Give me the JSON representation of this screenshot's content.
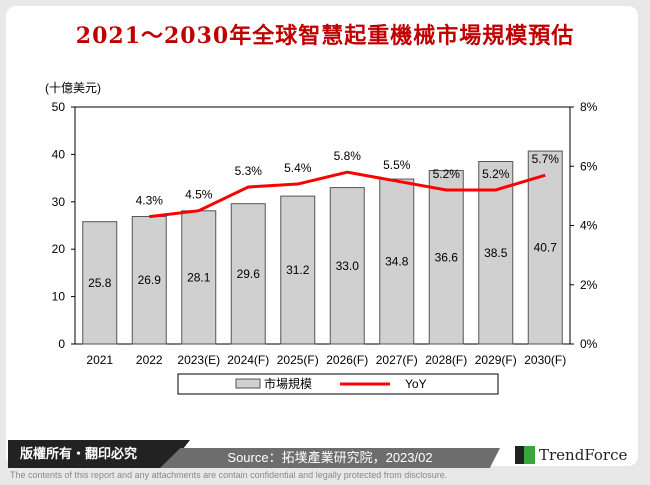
{
  "title": "2021～2030年全球智慧起重機械市場規模預估",
  "footer": {
    "copyright": "版權所有・翻印必究",
    "source": "Source：拓墣產業研究院，2023/02",
    "brand": "TrendForce",
    "disclaimer": "The contents of this report and any attachments are contain confidential and legally protected from disclosure."
  },
  "chart_data": {
    "type": "bar",
    "ylabel": "(十億美元)",
    "categories": [
      "2021",
      "2022",
      "2023(E)",
      "2024(F)",
      "2025(F)",
      "2026(F)",
      "2027(F)",
      "2028(F)",
      "2029(F)",
      "2030(F)"
    ],
    "series": [
      {
        "name": "市場規模",
        "type": "bar",
        "values": [
          25.8,
          26.9,
          28.1,
          29.6,
          31.2,
          33.0,
          34.8,
          36.6,
          38.5,
          40.7
        ],
        "labels": [
          "25.8",
          "26.9",
          "28.1",
          "29.6",
          "31.2",
          "33.0",
          "34.8",
          "36.6",
          "38.5",
          "40.7"
        ],
        "color": "#d0d0d0"
      },
      {
        "name": "YoY",
        "type": "line",
        "axis": "right",
        "values": [
          null,
          4.3,
          4.5,
          5.3,
          5.4,
          5.8,
          5.5,
          5.2,
          5.2,
          5.7
        ],
        "labels": [
          "",
          "4.3%",
          "4.5%",
          "5.3%",
          "5.4%",
          "5.8%",
          "5.5%",
          "5.2%",
          "5.2%",
          "5.7%"
        ],
        "color": "#ff0000"
      }
    ],
    "ylim": [
      0,
      50
    ],
    "yticks": [
      "0",
      "10",
      "20",
      "30",
      "40",
      "50"
    ],
    "y2lim": [
      0,
      8
    ],
    "y2ticks": [
      "0%",
      "2%",
      "4%",
      "6%",
      "8%"
    ],
    "grid": false,
    "legend": "bottom"
  }
}
